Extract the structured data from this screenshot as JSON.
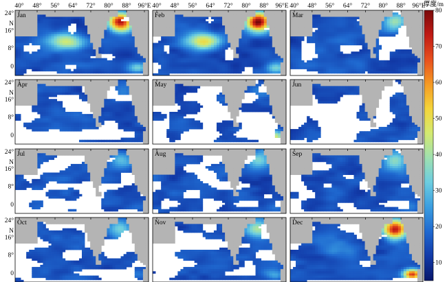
{
  "figure": {
    "colorbar": {
      "title": "厚度/m",
      "ticks": [
        "80",
        "70",
        "60",
        "50",
        "40",
        "30",
        "20",
        "10"
      ],
      "range": [
        5,
        80
      ],
      "stops": [
        "#08176b",
        "#123aa8",
        "#1f69d0",
        "#3b9ee0",
        "#6ccde0",
        "#9fe0b0",
        "#d4ea70",
        "#f4d43a",
        "#f59a24",
        "#e8501e",
        "#c01a14",
        "#7a0a0a"
      ]
    },
    "x_ticks": [
      "40°",
      "48°",
      "56°",
      "64°",
      "72°",
      "80°",
      "88°",
      "96°E"
    ],
    "y_ticks": [
      "24°",
      "N",
      "16°",
      "8°",
      "0"
    ],
    "colors": {
      "land": "#b4b4b4",
      "nodata": "#ffffff",
      "frame": "#000000",
      "deep_blue": "#0c1f7a"
    },
    "panels": [
      {
        "month": "Jan",
        "hot_north_bay": 72,
        "arabian_west": 44,
        "bay_south": 30
      },
      {
        "month": "Feb",
        "hot_north_bay": 75,
        "arabian_west": 48,
        "bay_south": 30
      },
      {
        "month": "Mar",
        "hot_north_bay": 32,
        "arabian_west": 14,
        "bay_south": 12
      },
      {
        "month": "Apr",
        "hot_north_bay": 18,
        "arabian_west": 10,
        "bay_south": 10
      },
      {
        "month": "May",
        "hot_north_bay": 14,
        "arabian_west": 10,
        "bay_south": 40
      },
      {
        "month": "Jun",
        "hot_north_bay": 14,
        "arabian_west": 12,
        "bay_south": 14
      },
      {
        "month": "Jul",
        "hot_north_bay": 22,
        "arabian_west": 12,
        "bay_south": 14
      },
      {
        "month": "Aug",
        "hot_north_bay": 28,
        "arabian_west": 14,
        "bay_south": 16
      },
      {
        "month": "Sep",
        "hot_north_bay": 32,
        "arabian_west": 12,
        "bay_south": 16
      },
      {
        "month": "Oct",
        "hot_north_bay": 30,
        "arabian_west": 12,
        "bay_south": 18
      },
      {
        "month": "Nov",
        "hot_north_bay": 36,
        "arabian_west": 14,
        "bay_south": 22
      },
      {
        "month": "Dec",
        "hot_north_bay": 70,
        "arabian_west": 16,
        "bay_south": 66
      }
    ]
  }
}
